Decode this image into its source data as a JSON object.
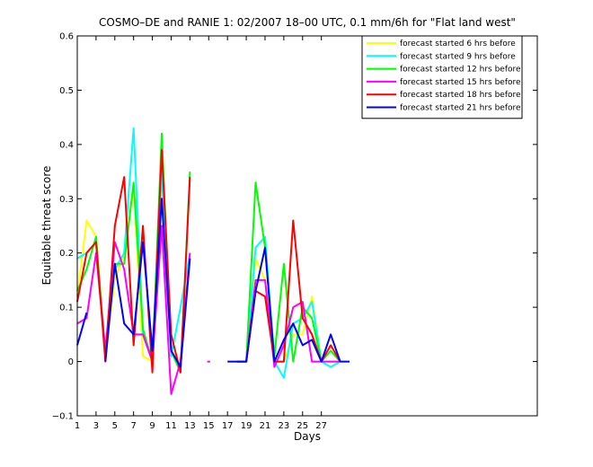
{
  "chart_data": {
    "type": "line",
    "title": "COSMO–DE and RANIE 1: 02/2007 18–00 UTC, 0.1 mm/6h for \"Flat land west\"",
    "xlabel": "Days",
    "ylabel": "Equitable threat score",
    "xlim": [
      1,
      50
    ],
    "ylim": [
      -0.1,
      0.6
    ],
    "xticks": [
      1,
      3,
      5,
      7,
      9,
      11,
      13,
      15,
      17,
      19,
      21,
      23,
      25,
      27
    ],
    "yticks": [
      -0.1,
      0,
      0.1,
      0.2,
      0.3,
      0.4,
      0.5,
      0.6
    ],
    "ytick_labels": [
      "−0.1",
      "0",
      "0.1",
      "0.2",
      "0.3",
      "0.4",
      "0.5",
      "0.6"
    ],
    "legend_position": "top-right",
    "grid": false,
    "series": [
      {
        "name": "forecast started 6 hrs before",
        "color": "#ffff00",
        "x": [
          1,
          2,
          3,
          4,
          5,
          6,
          7,
          8,
          9,
          10,
          11,
          12,
          13,
          null,
          18,
          19,
          20,
          21,
          22,
          23,
          24,
          25,
          26,
          27,
          28,
          29
        ],
        "y": [
          0.12,
          0.26,
          0.23,
          0.01,
          0.15,
          0.2,
          0.32,
          0.01,
          0.0,
          0.38,
          0.02,
          0.0,
          0.2,
          null,
          0.0,
          0.0,
          0.19,
          0.15,
          0.0,
          0.0,
          0.05,
          0.05,
          0.12,
          0.0,
          0.0,
          0.0
        ]
      },
      {
        "name": "forecast started 9 hrs before",
        "color": "#00ffff",
        "x": [
          1,
          2,
          3,
          4,
          5,
          6,
          7,
          8,
          9,
          10,
          11,
          12,
          13,
          null,
          18,
          19,
          20,
          21,
          22,
          23,
          24,
          25,
          26,
          27,
          28,
          29
        ],
        "y": [
          0.19,
          0.2,
          0.22,
          0.02,
          0.17,
          0.2,
          0.43,
          0.05,
          0.0,
          0.35,
          0.01,
          0.1,
          0.2,
          null,
          0.0,
          0.0,
          0.21,
          0.23,
          0.0,
          -0.03,
          0.07,
          0.08,
          0.11,
          0.0,
          -0.01,
          0.0
        ]
      },
      {
        "name": "forecast started 12 hrs before",
        "color": "#00ff00",
        "x": [
          1,
          2,
          3,
          4,
          5,
          6,
          7,
          8,
          9,
          10,
          11,
          12,
          13,
          null,
          18,
          19,
          20,
          21,
          22,
          23,
          24,
          25,
          26,
          27,
          28,
          29
        ],
        "y": [
          0.13,
          0.17,
          0.23,
          0.01,
          0.18,
          0.18,
          0.33,
          0.06,
          0.0,
          0.42,
          0.02,
          -0.02,
          0.35,
          null,
          0.0,
          0.0,
          0.33,
          0.21,
          0.01,
          0.18,
          0.0,
          0.1,
          0.08,
          0.0,
          0.02,
          0.0
        ]
      },
      {
        "name": "forecast started 15 hrs before",
        "color": "#ff00ff",
        "x": [
          1,
          2,
          3,
          4,
          5,
          6,
          7,
          8,
          9,
          10,
          11,
          12,
          13,
          null,
          15,
          null,
          18,
          19,
          20,
          21,
          22,
          23,
          24,
          25,
          26,
          27,
          28,
          29
        ],
        "y": [
          0.07,
          0.08,
          0.2,
          0.02,
          0.22,
          0.17,
          0.05,
          0.05,
          0.0,
          0.25,
          -0.06,
          0.0,
          0.2,
          null,
          0.0,
          null,
          0.0,
          0.0,
          0.15,
          0.15,
          -0.01,
          0.03,
          0.1,
          0.11,
          0.0,
          0.0,
          0.0,
          0.0
        ]
      },
      {
        "name": "forecast started 18 hrs before",
        "color": "#ff0000",
        "x": [
          1,
          2,
          3,
          4,
          5,
          6,
          7,
          8,
          9,
          10,
          11,
          12,
          13,
          null,
          18,
          19,
          20,
          21,
          22,
          23,
          24,
          25,
          26,
          27,
          28,
          29
        ],
        "y": [
          0.11,
          0.2,
          0.22,
          0.0,
          0.25,
          0.34,
          0.03,
          0.25,
          -0.02,
          0.39,
          0.05,
          -0.02,
          0.34,
          null,
          0.0,
          0.0,
          0.13,
          0.12,
          0.0,
          0.0,
          0.26,
          0.08,
          0.05,
          0.0,
          0.03,
          0.0
        ]
      },
      {
        "name": "forecast started 21 hrs before",
        "color": "#0000ff",
        "x": [
          1,
          2,
          null,
          4,
          5,
          6,
          7,
          8,
          9,
          10,
          11,
          12,
          13,
          null,
          17,
          18,
          19,
          20,
          21,
          22,
          23,
          24,
          25,
          26,
          27,
          28,
          29,
          30
        ],
        "y": [
          0.03,
          0.09,
          null,
          0.0,
          0.18,
          0.07,
          0.05,
          0.22,
          0.02,
          0.3,
          0.02,
          -0.01,
          0.19,
          null,
          0.0,
          0.0,
          0.0,
          0.13,
          0.21,
          0.0,
          0.04,
          0.07,
          0.03,
          0.04,
          0.0,
          0.05,
          0.0,
          0.0
        ]
      }
    ]
  }
}
